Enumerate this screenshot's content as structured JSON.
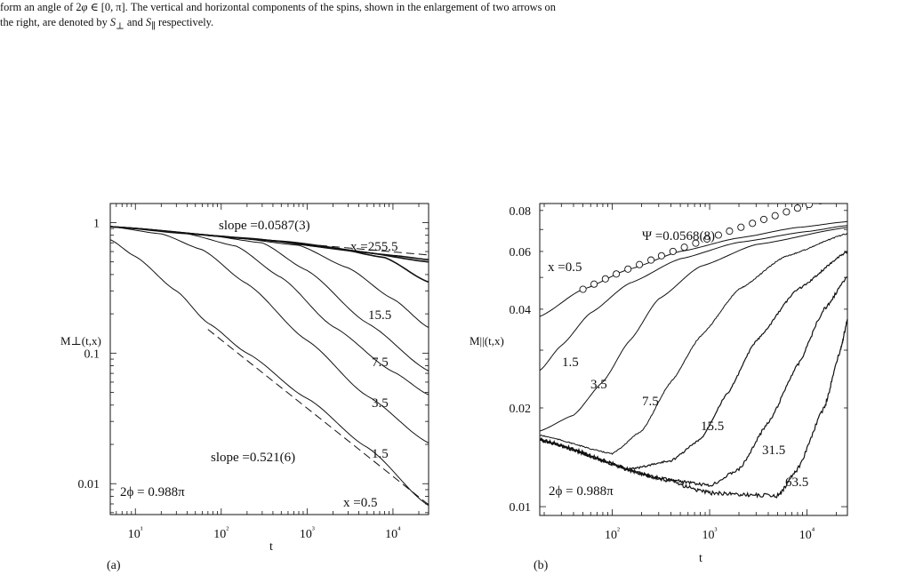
{
  "caption": {
    "line1_a": "form an angle of 2",
    "line1_phi": "φ",
    "line1_b": " ∈ [0, π]. The vertical and horizontal components of the spins, shown in the enlargement of two arrows on",
    "line2_a": "the right, are denoted by ",
    "line2_sperp": "S",
    "line2_sperp_sub": "⊥",
    "line2_mid": " and ",
    "line2_spar": "S",
    "line2_spar_sub": "∥",
    "line2_b": " respectively."
  },
  "chart_data": [
    {
      "panel": "(a)",
      "type": "line",
      "xscale": "log",
      "yscale": "log",
      "xlim": [
        5.1,
        26000
      ],
      "ylim": [
        0.0058,
        1.4
      ],
      "xlabel": "t",
      "ylabel": "M⊥(t,x)",
      "x_ticks": [
        "10¹",
        "10²",
        "10³",
        "10⁴"
      ],
      "y_ticks": [
        "1",
        "0.1",
        "0.01"
      ],
      "series": [
        {
          "name": "0.5",
          "points": [
            [
              5.1,
              0.74
            ],
            [
              10,
              0.55
            ],
            [
              30,
              0.3
            ],
            [
              70,
              0.17
            ],
            [
              200,
              0.1
            ],
            [
              1000,
              0.045
            ],
            [
              5000,
              0.019
            ],
            [
              26000,
              0.0068
            ]
          ]
        },
        {
          "name": "1.5",
          "points": [
            [
              5.1,
              0.93
            ],
            [
              20,
              0.82
            ],
            [
              60,
              0.62
            ],
            [
              200,
              0.34
            ],
            [
              1000,
              0.125
            ],
            [
              5000,
              0.047
            ],
            [
              26000,
              0.0205
            ]
          ]
        },
        {
          "name": "3.5",
          "points": [
            [
              5.1,
              0.93
            ],
            [
              40,
              0.82
            ],
            [
              150,
              0.66
            ],
            [
              500,
              0.38
            ],
            [
              2000,
              0.16
            ],
            [
              10000,
              0.072
            ],
            [
              26000,
              0.048
            ]
          ]
        },
        {
          "name": "7.5",
          "points": [
            [
              5.1,
              0.93
            ],
            [
              60,
              0.81
            ],
            [
              300,
              0.7
            ],
            [
              1000,
              0.43
            ],
            [
              5000,
              0.17
            ],
            [
              26000,
              0.073
            ]
          ]
        },
        {
          "name": "15.5",
          "points": [
            [
              5.1,
              0.93
            ],
            [
              100,
              0.79
            ],
            [
              800,
              0.67
            ],
            [
              3000,
              0.45
            ],
            [
              10000,
              0.26
            ],
            [
              26000,
              0.157
            ]
          ]
        },
        {
          "name": "",
          "points": [
            [
              5.1,
              0.93
            ],
            [
              200,
              0.76
            ],
            [
              2000,
              0.64
            ],
            [
              8000,
              0.54
            ],
            [
              26000,
              0.35
            ]
          ]
        },
        {
          "name": "",
          "points": [
            [
              5.1,
              0.93
            ],
            [
              300,
              0.74
            ],
            [
              4000,
              0.6
            ],
            [
              26000,
              0.5
            ]
          ]
        },
        {
          "name": "255.5",
          "points": [
            [
              5.1,
              0.93
            ],
            [
              500,
              0.72
            ],
            [
              10000,
              0.56
            ],
            [
              26000,
              0.52
            ]
          ]
        }
      ],
      "reference_lines": [
        {
          "label": "slope =0.0587(3)",
          "slope": -0.0587,
          "points": [
            [
              50,
              0.81
            ],
            [
              26000,
              0.565
            ]
          ]
        },
        {
          "label": "slope =0.521(6)",
          "slope": -0.521,
          "points": [
            [
              70,
              0.152
            ],
            [
              26000,
              0.0069
            ]
          ]
        }
      ],
      "annotations": {
        "x_prefix": "x =",
        "parameter": "2ϕ = 0.988π"
      }
    },
    {
      "panel": "(b)",
      "type": "line",
      "xscale": "log",
      "yscale": "log",
      "xlim": [
        18,
        26000
      ],
      "ylim": [
        0.0094,
        0.084
      ],
      "xlabel": "t",
      "ylabel": "M||(t,x)",
      "x_ticks": [
        "10²",
        "10³",
        "10⁴"
      ],
      "y_ticks": [
        "0.08",
        "0.06",
        "0.04",
        "0.02",
        "0.01"
      ],
      "series": [
        {
          "name": "0.5",
          "points": [
            [
              18,
              0.038
            ],
            [
              50,
              0.046
            ],
            [
              150,
              0.053
            ],
            [
              500,
              0.06
            ],
            [
              2000,
              0.066
            ],
            [
              8000,
              0.071
            ],
            [
              26000,
              0.074
            ]
          ]
        },
        {
          "name": "1.5",
          "points": [
            [
              18,
              0.026
            ],
            [
              30,
              0.031
            ],
            [
              60,
              0.039
            ],
            [
              150,
              0.048
            ],
            [
              500,
              0.057
            ],
            [
              2000,
              0.064
            ],
            [
              10000,
              0.069
            ],
            [
              26000,
              0.072
            ]
          ]
        },
        {
          "name": "3.5",
          "points": [
            [
              18,
              0.017
            ],
            [
              40,
              0.019
            ],
            [
              80,
              0.024
            ],
            [
              150,
              0.032
            ],
            [
              300,
              0.043
            ],
            [
              800,
              0.054
            ],
            [
              3000,
              0.063
            ],
            [
              26000,
              0.071
            ]
          ]
        },
        {
          "name": "7.5",
          "points": [
            [
              18,
              0.0165
            ],
            [
              100,
              0.0145
            ],
            [
              200,
              0.017
            ],
            [
              400,
              0.024
            ],
            [
              800,
              0.033
            ],
            [
              2000,
              0.046
            ],
            [
              6000,
              0.058
            ],
            [
              26000,
              0.068
            ]
          ]
        },
        {
          "name": "15.5",
          "points": [
            [
              18,
              0.016
            ],
            [
              150,
              0.013
            ],
            [
              400,
              0.0138
            ],
            [
              800,
              0.016
            ],
            [
              1500,
              0.022
            ],
            [
              3000,
              0.032
            ],
            [
              8000,
              0.046
            ],
            [
              26000,
              0.06
            ]
          ]
        },
        {
          "name": "31.5",
          "points": [
            [
              18,
              0.016
            ],
            [
              300,
              0.0122
            ],
            [
              1000,
              0.0116
            ],
            [
              2000,
              0.013
            ],
            [
              4000,
              0.018
            ],
            [
              8000,
              0.027
            ],
            [
              15000,
              0.04
            ],
            [
              26000,
              0.05
            ]
          ]
        },
        {
          "name": "63.5",
          "points": [
            [
              18,
              0.016
            ],
            [
              300,
              0.0122
            ],
            [
              1000,
              0.011
            ],
            [
              5000,
              0.0108
            ],
            [
              8000,
              0.013
            ],
            [
              15000,
              0.02
            ],
            [
              22000,
              0.03
            ],
            [
              26000,
              0.037
            ]
          ]
        }
      ],
      "circle_series": {
        "points": [
          [
            50,
            0.046
          ],
          [
            65,
            0.0477
          ],
          [
            85,
            0.0495
          ],
          [
            110,
            0.0512
          ],
          [
            145,
            0.053
          ],
          [
            190,
            0.0547
          ],
          [
            250,
            0.0565
          ],
          [
            320,
            0.0582
          ],
          [
            420,
            0.06
          ],
          [
            550,
            0.0618
          ],
          [
            720,
            0.0636
          ],
          [
            940,
            0.0655
          ],
          [
            1230,
            0.0673
          ],
          [
            1600,
            0.0692
          ],
          [
            2100,
            0.0711
          ],
          [
            2750,
            0.0731
          ],
          [
            3600,
            0.0751
          ],
          [
            4700,
            0.0771
          ],
          [
            6150,
            0.0792
          ],
          [
            8000,
            0.0813
          ],
          [
            10500,
            0.0834
          ],
          [
            13700,
            0.0856
          ],
          [
            18000,
            0.0878
          ],
          [
            23500,
            0.09
          ]
        ]
      },
      "fit_label": "Ψ =0.0568(8)",
      "annotations": {
        "x_prefix": "x =",
        "parameter": "2ϕ = 0.988π"
      }
    }
  ]
}
